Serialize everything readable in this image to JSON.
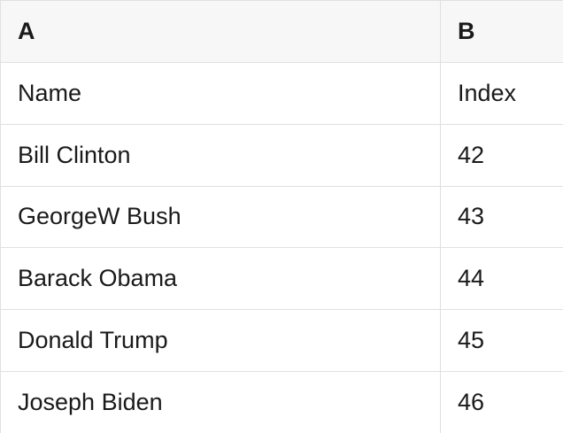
{
  "colors": {
    "header_bg": "#f7f7f7",
    "row_bg": "#ffffff",
    "border": "#e0e0e0",
    "text": "#1a1a1a"
  },
  "table": {
    "header": [
      "A",
      "B"
    ],
    "rows": [
      [
        "Name",
        "Index"
      ],
      [
        "Bill Clinton",
        "42"
      ],
      [
        "GeorgeW Bush",
        "43"
      ],
      [
        "Barack Obama",
        "44"
      ],
      [
        "Donald Trump",
        "45"
      ],
      [
        "Joseph Biden",
        "46"
      ]
    ]
  }
}
